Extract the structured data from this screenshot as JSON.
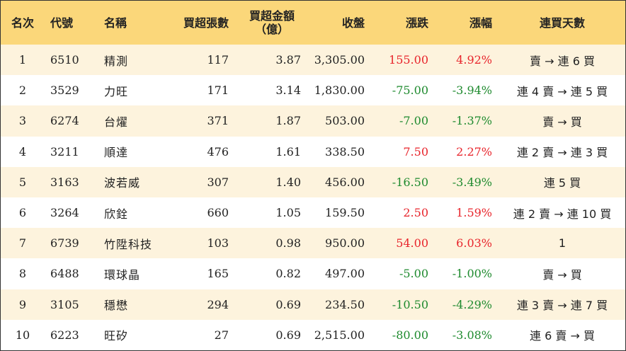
{
  "headers": {
    "rank": "名次",
    "code": "代號",
    "name": "名稱",
    "buy_lots": "買超張數",
    "buy_amount_line1": "買超金額",
    "buy_amount_line2": "（億）",
    "close": "收盤",
    "change": "漲跌",
    "pct": "漲幅",
    "days": "連買天數"
  },
  "colors": {
    "up": "#e8242b",
    "down": "#1e8a2e",
    "header_bg": "#fbd77a",
    "stripe_bg": "#fdf3dd"
  },
  "rows": [
    {
      "rank": "1",
      "code": "6510",
      "name": "精測",
      "buy_lots": "117",
      "buy_amount": "3.87",
      "close": "3,305.00",
      "change": "155.00",
      "pct": "4.92%",
      "direction": "up",
      "days": "賣 → 連 6 買"
    },
    {
      "rank": "2",
      "code": "3529",
      "name": "力旺",
      "buy_lots": "171",
      "buy_amount": "3.14",
      "close": "1,830.00",
      "change": "-75.00",
      "pct": "-3.94%",
      "direction": "down",
      "days": "連 4 賣 → 連 5 買"
    },
    {
      "rank": "3",
      "code": "6274",
      "name": "台燿",
      "buy_lots": "371",
      "buy_amount": "1.87",
      "close": "503.00",
      "change": "-7.00",
      "pct": "-1.37%",
      "direction": "down",
      "days": "賣 → 買"
    },
    {
      "rank": "4",
      "code": "3211",
      "name": "順達",
      "buy_lots": "476",
      "buy_amount": "1.61",
      "close": "338.50",
      "change": "7.50",
      "pct": "2.27%",
      "direction": "up",
      "days": "連 2 賣 → 連 3 買"
    },
    {
      "rank": "5",
      "code": "3163",
      "name": "波若威",
      "buy_lots": "307",
      "buy_amount": "1.40",
      "close": "456.00",
      "change": "-16.50",
      "pct": "-3.49%",
      "direction": "down",
      "days": "連 5 買"
    },
    {
      "rank": "6",
      "code": "3264",
      "name": "欣銓",
      "buy_lots": "660",
      "buy_amount": "1.05",
      "close": "159.50",
      "change": "2.50",
      "pct": "1.59%",
      "direction": "up",
      "days": "連 2 賣 → 連 10 買"
    },
    {
      "rank": "7",
      "code": "6739",
      "name": "竹陞科技",
      "buy_lots": "103",
      "buy_amount": "0.98",
      "close": "950.00",
      "change": "54.00",
      "pct": "6.03%",
      "direction": "up",
      "days": "1"
    },
    {
      "rank": "8",
      "code": "6488",
      "name": "環球晶",
      "buy_lots": "165",
      "buy_amount": "0.82",
      "close": "497.00",
      "change": "-5.00",
      "pct": "-1.00%",
      "direction": "down",
      "days": "賣 → 買"
    },
    {
      "rank": "9",
      "code": "3105",
      "name": "穩懋",
      "buy_lots": "294",
      "buy_amount": "0.69",
      "close": "234.50",
      "change": "-10.50",
      "pct": "-4.29%",
      "direction": "down",
      "days": "連 3 賣 → 連 7 買"
    },
    {
      "rank": "10",
      "code": "6223",
      "name": "旺矽",
      "buy_lots": "27",
      "buy_amount": "0.69",
      "close": "2,515.00",
      "change": "-80.00",
      "pct": "-3.08%",
      "direction": "down",
      "days": "連 6 賣 → 買"
    }
  ]
}
